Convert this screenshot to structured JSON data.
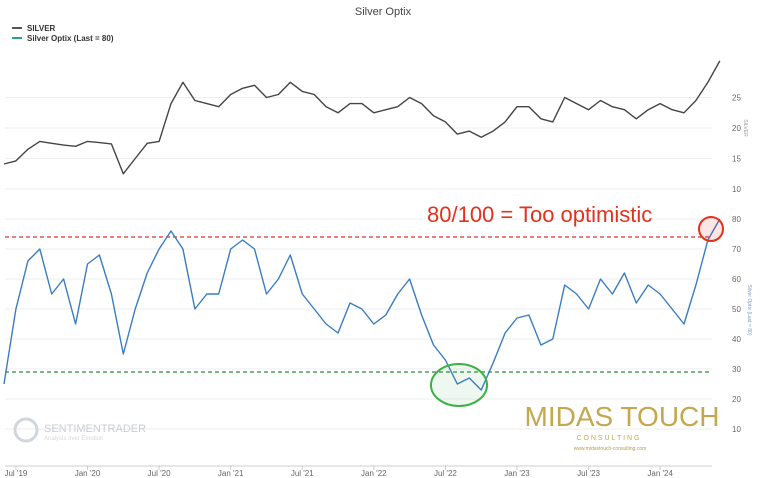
{
  "chart_data": {
    "type": "line",
    "title": "Silver Optix",
    "legend": [
      {
        "label": "SILVER",
        "color": "#555555"
      },
      {
        "label": "Silver Optix (Last = 80)",
        "color": "#2f9f88"
      }
    ],
    "legend_position": "top-left",
    "x_start": "Jun 2019",
    "x_step": "month",
    "x_ticks": [
      {
        "label": "Jul '19",
        "index": 1
      },
      {
        "label": "Jan '20",
        "index": 7
      },
      {
        "label": "Jul '20",
        "index": 13
      },
      {
        "label": "Jan '21",
        "index": 19
      },
      {
        "label": "Jul '21",
        "index": 25
      },
      {
        "label": "Jan '22",
        "index": 31
      },
      {
        "label": "Jul '22",
        "index": 37
      },
      {
        "label": "Jan '23",
        "index": 43
      },
      {
        "label": "Jul '23",
        "index": 49
      },
      {
        "label": "Jan '24",
        "index": 55
      }
    ],
    "series": [
      {
        "name": "SILVER",
        "axis_label": "SILVER",
        "color": "#444444",
        "ylim": [
          10,
          30
        ],
        "yticks": [
          10,
          15,
          20,
          25
        ],
        "values": [
          14.1,
          14.6,
          16.5,
          17.8,
          17.5,
          17.2,
          17.0,
          17.8,
          17.6,
          17.4,
          12.5,
          15.0,
          17.5,
          17.8,
          24.0,
          27.5,
          24.5,
          24.0,
          23.5,
          25.5,
          26.5,
          27.0,
          25.0,
          25.5,
          27.5,
          26.0,
          25.5,
          23.5,
          22.5,
          24.0,
          24.0,
          22.5,
          23.0,
          23.5,
          25.0,
          24.0,
          22.0,
          21.0,
          19.0,
          19.5,
          18.5,
          19.5,
          21.0,
          23.5,
          23.5,
          21.5,
          21.0,
          25.0,
          24.0,
          23.0,
          24.5,
          23.5,
          23.0,
          21.5,
          23.0,
          24.0,
          23.0,
          22.5,
          24.5,
          27.5,
          31.0
        ]
      },
      {
        "name": "Silver Optix",
        "axis_label": "Silver Optix (Last = 80)",
        "color": "#3a7cc4",
        "ylim": [
          10,
          80
        ],
        "yticks": [
          10,
          20,
          30,
          40,
          50,
          60,
          70,
          80
        ],
        "values": [
          25,
          50,
          66,
          70,
          55,
          60,
          45,
          65,
          68,
          55,
          35,
          50,
          62,
          70,
          76,
          70,
          50,
          55,
          55,
          70,
          73,
          70,
          55,
          60,
          68,
          55,
          50,
          45,
          42,
          52,
          50,
          45,
          48,
          55,
          60,
          48,
          38,
          33,
          25,
          27,
          23,
          32,
          42,
          47,
          48,
          38,
          40,
          58,
          55,
          50,
          60,
          55,
          62,
          52,
          58,
          55,
          50,
          45,
          58,
          73,
          80
        ]
      }
    ],
    "reference_lines": [
      {
        "name": "optimism-threshold",
        "value": 74,
        "color": "#d9332b"
      },
      {
        "name": "pessimism-threshold",
        "value": 29,
        "color": "#2e8b3a"
      }
    ],
    "annotations": [
      {
        "text": "80/100 = Too optimistic",
        "color": "#e0321e"
      }
    ],
    "watermarks": {
      "sentimentrader": "SENTIMENTRADER",
      "sentimentrader_tagline": "Analysis over Emotion",
      "midas": "MIDAS TOUCH",
      "midas_sub": "C O N S U L T I N G",
      "midas_url": "www.midastouch-consulting.com"
    }
  }
}
